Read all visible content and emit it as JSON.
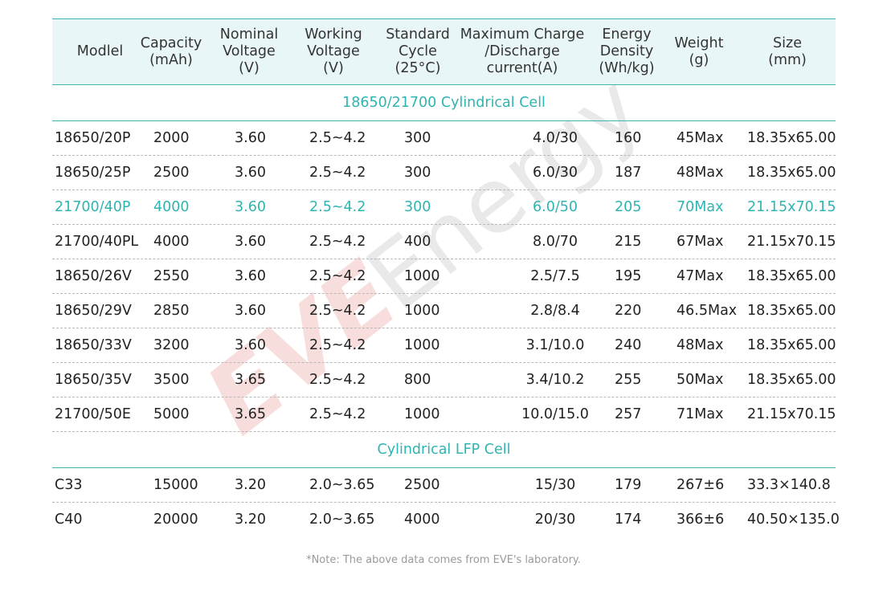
{
  "colors": {
    "accent": "#3bb6b4",
    "accent_text": "#2fb4b2",
    "header_bg": "#e9f6f8",
    "watermark_red": "#f3c2c2",
    "watermark_gray": "#d8d8d8"
  },
  "columns": [
    "Modlel",
    "Capacity\n(mAh)",
    "Nominal\nVoltage\n(V)",
    "Working\nVoltage\n(V)",
    "Standard\nCycle\n(25°C)",
    "Maximum Charge\n/Discharge\ncurrent(A)",
    "Energy\nDensity\n(Wh/kg)",
    "Weight\n(g)",
    "Size\n(mm)"
  ],
  "sections": [
    {
      "title": "18650/21700 Cylindrical Cell",
      "rows": [
        [
          "18650/20P",
          "2000",
          "3.60",
          "2.5~4.2",
          "300",
          "4.0/30",
          "160",
          "45Max",
          "18.35x65.00"
        ],
        [
          "18650/25P",
          "2500",
          "3.60",
          "2.5~4.2",
          "300",
          "6.0/30",
          "187",
          "48Max",
          "18.35x65.00"
        ],
        [
          "21700/40P",
          "4000",
          "3.60",
          "2.5~4.2",
          "300",
          "6.0/50",
          "205",
          "70Max",
          "21.15x70.15"
        ],
        [
          "21700/40PL",
          "4000",
          "3.60",
          "2.5~4.2",
          "400",
          "8.0/70",
          "215",
          "67Max",
          "21.15x70.15"
        ],
        [
          "18650/26V",
          "2550",
          "3.60",
          "2.5~4.2",
          "1000",
          "2.5/7.5",
          "195",
          "47Max",
          "18.35x65.00"
        ],
        [
          "18650/29V",
          "2850",
          "3.60",
          "2.5~4.2",
          "1000",
          "2.8/8.4",
          "220",
          "46.5Max",
          "18.35x65.00"
        ],
        [
          "18650/33V",
          "3200",
          "3.60",
          "2.5~4.2",
          "1000",
          "3.1/10.0",
          "240",
          "48Max",
          "18.35x65.00"
        ],
        [
          "18650/35V",
          "3500",
          "3.65",
          "2.5~4.2",
          "800",
          "3.4/10.2",
          "255",
          "50Max",
          "18.35x65.00"
        ],
        [
          "21700/50E",
          "5000",
          "3.65",
          "2.5~4.2",
          "1000",
          "10.0/15.0",
          "257",
          "71Max",
          "21.15x70.15"
        ]
      ]
    },
    {
      "title": "Cylindrical LFP Cell",
      "rows": [
        [
          "C33",
          "15000",
          "3.20",
          "2.0~3.65",
          "2500",
          "15/30",
          "179",
          "267±6",
          "33.3×140.8"
        ],
        [
          "C40",
          "20000",
          "3.20",
          "2.0~3.65",
          "4000",
          "20/30",
          "174",
          "366±6",
          "40.50×135.0"
        ]
      ]
    }
  ],
  "highlight_row": "21700/40P",
  "watermark": {
    "brand": "EVE",
    "word": "Energy",
    "mark": "®"
  },
  "note": "*Note: The above data comes from EVE's laboratory."
}
